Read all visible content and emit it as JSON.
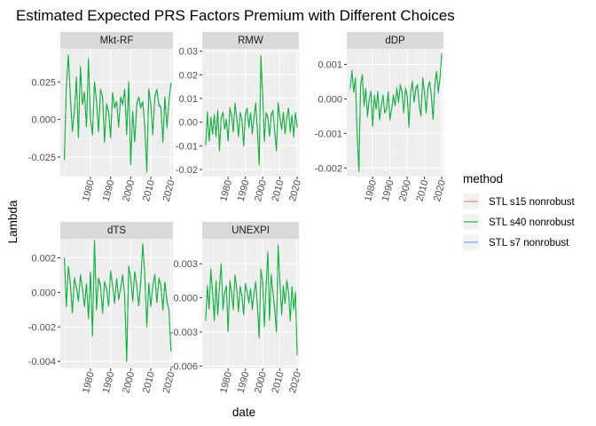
{
  "chart_data": {
    "type": "line",
    "title": "Estimated Expected PRS Factors Premium with Different Choices",
    "xlabel": "date",
    "ylabel": "Lambda",
    "xlim": [
      1965,
      2021
    ],
    "x_ticks": [
      1980,
      1990,
      2000,
      2010,
      2020
    ],
    "grid": true,
    "legend": {
      "title": "method",
      "position": "right",
      "entries": [
        {
          "name": "STL s15 nonrobust",
          "color": "#F8766D"
        },
        {
          "name": "STL s40 nonrobust",
          "color": "#00BA38"
        },
        {
          "name": "STL s7 nonrobust",
          "color": "#619CFF"
        }
      ]
    },
    "facets": [
      {
        "name": "Mkt-RF",
        "ylim": [
          -0.038,
          0.047
        ],
        "y_ticks": [
          -0.025,
          0.0,
          0.025
        ],
        "y_tick_labels": [
          "-0.025",
          "0.000",
          "0.025"
        ],
        "series_x": [
          1967,
          1968,
          1969,
          1970,
          1971,
          1972,
          1973,
          1974,
          1975,
          1976,
          1977,
          1978,
          1979,
          1980,
          1981,
          1982,
          1983,
          1984,
          1985,
          1986,
          1987,
          1988,
          1989,
          1990,
          1991,
          1992,
          1993,
          1994,
          1995,
          1996,
          1997,
          1998,
          1999,
          2000,
          2001,
          2002,
          2003,
          2004,
          2005,
          2006,
          2007,
          2008,
          2009,
          2010,
          2011,
          2012,
          2013,
          2014,
          2015,
          2016,
          2017,
          2018,
          2019,
          2020
        ],
        "series_y": [
          -0.027,
          0.022,
          0.043,
          0.015,
          -0.008,
          0.005,
          0.028,
          -0.012,
          0.035,
          0.01,
          0.018,
          -0.005,
          0.04,
          0.0,
          -0.01,
          0.025,
          0.012,
          -0.008,
          0.02,
          0.015,
          -0.015,
          0.01,
          0.005,
          -0.012,
          0.018,
          0.008,
          0.012,
          -0.005,
          0.015,
          0.01,
          0.02,
          -0.01,
          0.025,
          -0.03,
          0.005,
          -0.015,
          0.01,
          0.015,
          0.008,
          0.012,
          -0.005,
          -0.035,
          0.02,
          0.01,
          -0.01,
          0.015,
          0.02,
          0.01,
          0.008,
          -0.015,
          0.015,
          -0.005,
          0.012,
          0.024
        ]
      },
      {
        "name": "RMW",
        "ylim": [
          -0.023,
          0.031
        ],
        "y_ticks": [
          -0.02,
          -0.01,
          0.0,
          0.01,
          0.02,
          0.03
        ],
        "y_tick_labels": [
          "-0.02",
          "-0.01",
          "0.00",
          "0.01",
          "0.02",
          "0.03"
        ],
        "series_x": [
          1967,
          1968,
          1969,
          1970,
          1971,
          1972,
          1973,
          1974,
          1975,
          1976,
          1977,
          1978,
          1979,
          1980,
          1981,
          1982,
          1983,
          1984,
          1985,
          1986,
          1987,
          1988,
          1989,
          1990,
          1991,
          1992,
          1993,
          1994,
          1995,
          1996,
          1997,
          1998,
          1999,
          2000,
          2001,
          2002,
          2003,
          2004,
          2005,
          2006,
          2007,
          2008,
          2009,
          2010,
          2011,
          2012,
          2013,
          2014,
          2015,
          2016,
          2017,
          2018,
          2019,
          2020
        ],
        "series_y": [
          -0.01,
          0.004,
          -0.008,
          0.002,
          -0.005,
          0.003,
          -0.006,
          0.005,
          -0.012,
          0.002,
          0.004,
          -0.003,
          0.001,
          -0.008,
          0.006,
          0.003,
          -0.004,
          0.008,
          0.002,
          -0.006,
          0.004,
          0.001,
          -0.01,
          0.003,
          0.006,
          -0.002,
          0.004,
          -0.005,
          0.002,
          0.008,
          -0.004,
          -0.018,
          0.028,
          0.012,
          -0.008,
          0.004,
          0.002,
          -0.006,
          0.003,
          0.005,
          -0.004,
          -0.012,
          0.008,
          0.002,
          -0.003,
          0.004,
          -0.005,
          0.002,
          0.006,
          -0.004,
          0.003,
          -0.006,
          0.004,
          -0.002
        ]
      },
      {
        "name": "dDP",
        "ylim": [
          -0.00225,
          0.00145
        ],
        "y_ticks": [
          -0.002,
          -0.001,
          0.0,
          0.001
        ],
        "y_tick_labels": [
          "-0.002",
          "-0.001",
          "0.000",
          "0.001"
        ],
        "series_x": [
          1967,
          1968,
          1969,
          1970,
          1971,
          1972,
          1973,
          1974,
          1975,
          1976,
          1977,
          1978,
          1979,
          1980,
          1981,
          1982,
          1983,
          1984,
          1985,
          1986,
          1987,
          1988,
          1989,
          1990,
          1991,
          1992,
          1993,
          1994,
          1995,
          1996,
          1997,
          1998,
          1999,
          2000,
          2001,
          2002,
          2003,
          2004,
          2005,
          2006,
          2007,
          2008,
          2009,
          2010,
          2011,
          2012,
          2013,
          2014,
          2015,
          2016,
          2017,
          2018,
          2019,
          2020
        ],
        "series_y": [
          0.0003,
          0.0008,
          0.0002,
          0.0006,
          -0.001,
          -0.0021,
          0.0004,
          0.0007,
          -0.0002,
          0.0003,
          -0.0005,
          0.0,
          0.0002,
          -0.0008,
          0.0001,
          -0.0003,
          0.0002,
          -0.0006,
          -0.0002,
          0.0001,
          -0.0004,
          -0.0003,
          0.0002,
          -0.0006,
          -0.0003,
          0.0001,
          -0.0002,
          0.0003,
          -0.0001,
          0.0004,
          0.0002,
          -0.0004,
          0.0003,
          0.0001,
          -0.0008,
          0.0002,
          0.0005,
          -0.0001,
          0.0003,
          0.0004,
          -0.0002,
          -0.0005,
          0.0006,
          0.0002,
          -0.0004,
          0.0003,
          0.0005,
          0.0001,
          -0.0006,
          0.0004,
          0.0008,
          0.0002,
          0.0006,
          0.0013
        ]
      },
      {
        "name": "dTS",
        "ylim": [
          -0.0044,
          0.0031
        ],
        "y_ticks": [
          -0.004,
          -0.002,
          0.0,
          0.002
        ],
        "y_tick_labels": [
          "-0.004",
          "-0.002",
          "0.000",
          "0.002"
        ],
        "series_x": [
          1967,
          1968,
          1969,
          1970,
          1971,
          1972,
          1973,
          1974,
          1975,
          1976,
          1977,
          1978,
          1979,
          1980,
          1981,
          1982,
          1983,
          1984,
          1985,
          1986,
          1987,
          1988,
          1989,
          1990,
          1991,
          1992,
          1993,
          1994,
          1995,
          1996,
          1997,
          1998,
          1999,
          2000,
          2001,
          2002,
          2003,
          2004,
          2005,
          2006,
          2007,
          2008,
          2009,
          2010,
          2011,
          2012,
          2013,
          2014,
          2015,
          2016,
          2017,
          2018,
          2019,
          2020
        ],
        "series_y": [
          0.002,
          -0.0008,
          0.0015,
          0.0005,
          -0.0012,
          0.0008,
          0.0003,
          -0.0005,
          0.001,
          0.0002,
          -0.0008,
          0.0005,
          -0.0015,
          0.0012,
          -0.0025,
          0.003,
          -0.001,
          0.0008,
          0.0004,
          -0.0012,
          0.0006,
          0.0002,
          -0.0008,
          0.0012,
          0.0004,
          -0.0006,
          0.0008,
          -0.0004,
          0.0002,
          0.001,
          -0.0002,
          -0.004,
          0.0015,
          0.0008,
          -0.0005,
          0.0012,
          0.0004,
          -0.0008,
          0.0006,
          0.0028,
          0.001,
          -0.002,
          0.0005,
          -0.0008,
          0.0004,
          0.001,
          -0.0006,
          0.0008,
          0.0004,
          -0.001,
          0.0006,
          -0.0005,
          -0.001,
          -0.0034
        ]
      },
      {
        "name": "UNEXPI",
        "ylim": [
          -0.0062,
          0.0052
        ],
        "y_ticks": [
          -0.006,
          -0.003,
          0.0,
          0.003
        ],
        "y_tick_labels": [
          "-0.006",
          "-0.003",
          "0.000",
          "0.003"
        ],
        "series_x": [
          1967,
          1968,
          1969,
          1970,
          1971,
          1972,
          1973,
          1974,
          1975,
          1976,
          1977,
          1978,
          1979,
          1980,
          1981,
          1982,
          1983,
          1984,
          1985,
          1986,
          1987,
          1988,
          1989,
          1990,
          1991,
          1992,
          1993,
          1994,
          1995,
          1996,
          1997,
          1998,
          1999,
          2000,
          2001,
          2002,
          2003,
          2004,
          2005,
          2006,
          2007,
          2008,
          2009,
          2010,
          2011,
          2012,
          2013,
          2014,
          2015,
          2016,
          2017,
          2018,
          2019,
          2020
        ],
        "series_y": [
          -0.002,
          0.001,
          -0.001,
          0.0025,
          0.0005,
          -0.002,
          0.0015,
          -0.0015,
          0.001,
          0.003,
          -0.001,
          0.0005,
          0.001,
          -0.003,
          0.0015,
          0.0005,
          -0.001,
          0.002,
          0.0008,
          -0.0012,
          0.001,
          0.0002,
          -0.0015,
          0.0012,
          0.0006,
          -0.0004,
          0.0008,
          -0.001,
          0.0004,
          0.0014,
          -0.0008,
          -0.0035,
          0.0025,
          0.0015,
          -0.0025,
          0.001,
          0.004,
          -0.002,
          0.002,
          0.0005,
          -0.001,
          -0.003,
          0.0046,
          0.0015,
          -0.0015,
          0.001,
          -0.0005,
          0.0015,
          0.0005,
          -0.002,
          0.001,
          -0.001,
          0.0005,
          -0.005
        ]
      }
    ]
  }
}
